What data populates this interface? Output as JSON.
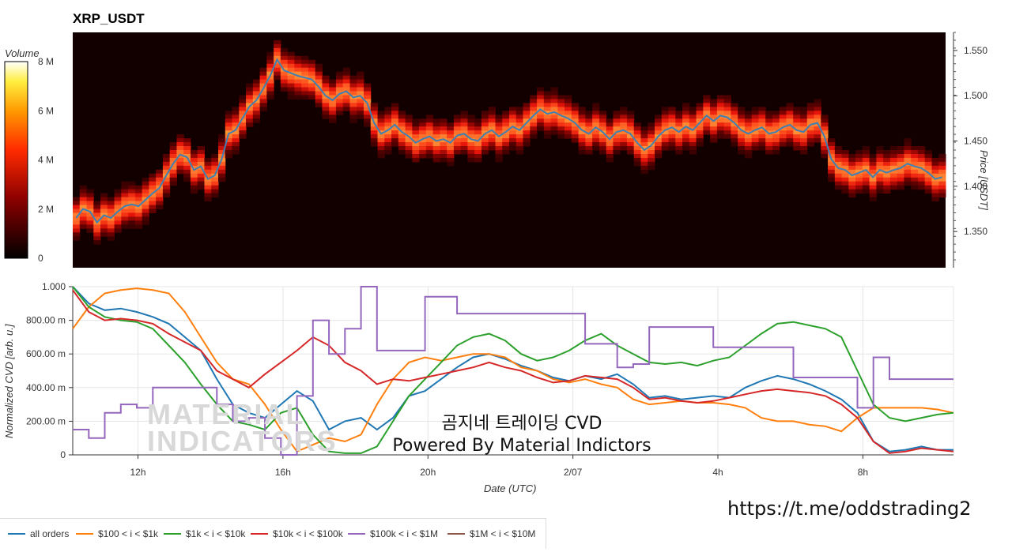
{
  "chart_data": [
    {
      "type": "heatmap",
      "title": "XRP_USDT",
      "xlabel": "",
      "ylabel": "Price [USDT]",
      "ylim": [
        1.31,
        1.57
      ],
      "yticks": [
        "1.350",
        "1.400",
        "1.450",
        "1.500",
        "1.550"
      ],
      "colorbar": {
        "label": "Volume",
        "ticks": [
          "0",
          "2 M",
          "4 M",
          "6 M",
          "8 M"
        ],
        "range": [
          0,
          8000000
        ]
      },
      "price_series": {
        "name": "",
        "color": "#3f7fb2",
        "values": [
          1.365,
          1.375,
          1.372,
          1.36,
          1.368,
          1.365,
          1.372,
          1.378,
          1.38,
          1.378,
          1.385,
          1.392,
          1.398,
          1.412,
          1.425,
          1.435,
          1.432,
          1.418,
          1.422,
          1.408,
          1.412,
          1.43,
          1.458,
          1.462,
          1.475,
          1.488,
          1.495,
          1.508,
          1.522,
          1.54,
          1.528,
          1.525,
          1.522,
          1.52,
          1.518,
          1.51,
          1.5,
          1.495,
          1.502,
          1.505,
          1.498,
          1.5,
          1.492,
          1.47,
          1.458,
          1.462,
          1.468,
          1.46,
          1.455,
          1.448,
          1.452,
          1.455,
          1.45,
          1.452,
          1.448,
          1.456,
          1.458,
          1.452,
          1.45,
          1.458,
          1.462,
          1.455,
          1.46,
          1.466,
          1.462,
          1.47,
          1.478,
          1.485,
          1.48,
          1.482,
          1.478,
          1.475,
          1.47,
          1.462,
          1.458,
          1.465,
          1.46,
          1.452,
          1.46,
          1.462,
          1.458,
          1.448,
          1.44,
          1.445,
          1.455,
          1.462,
          1.465,
          1.46,
          1.466,
          1.462,
          1.47,
          1.478,
          1.472,
          1.478,
          1.476,
          1.47,
          1.462,
          1.458,
          1.462,
          1.465,
          1.458,
          1.46,
          1.465,
          1.468,
          1.462,
          1.46,
          1.468,
          1.47,
          1.455,
          1.43,
          1.42,
          1.418,
          1.412,
          1.415,
          1.418,
          1.41,
          1.418,
          1.415,
          1.418,
          1.42,
          1.425,
          1.422,
          1.42,
          1.415,
          1.408,
          1.41
        ]
      }
    },
    {
      "type": "line",
      "title": "",
      "xlabel": "Date (UTC)",
      "ylabel": "Normalized CVD [arb. u.]",
      "ylim": [
        0,
        1
      ],
      "yticks": [
        "0",
        "200.00 m",
        "400.00 m",
        "600.00 m",
        "800.00 m",
        "1.000"
      ],
      "xticks": [
        "12h",
        "16h",
        "20h",
        "2/07",
        "4h",
        "8h"
      ],
      "xtick_hours": [
        12,
        16,
        20,
        24,
        28,
        32
      ],
      "x_start_hour": 10.2,
      "x_end_hour": 34.5,
      "series": [
        {
          "name": "all orders",
          "color": "#1f77b4",
          "values": [
            1.0,
            0.9,
            0.86,
            0.87,
            0.85,
            0.82,
            0.78,
            0.7,
            0.62,
            0.45,
            0.3,
            0.25,
            0.22,
            0.3,
            0.38,
            0.32,
            0.15,
            0.2,
            0.22,
            0.15,
            0.22,
            0.35,
            0.38,
            0.45,
            0.52,
            0.58,
            0.6,
            0.57,
            0.53,
            0.5,
            0.46,
            0.44,
            0.47,
            0.45,
            0.48,
            0.42,
            0.34,
            0.35,
            0.33,
            0.34,
            0.35,
            0.34,
            0.4,
            0.44,
            0.47,
            0.45,
            0.42,
            0.38,
            0.33,
            0.25,
            0.08,
            0.02,
            0.03,
            0.05,
            0.03,
            0.03
          ]
        },
        {
          "name": "$100 < i < $1k",
          "color": "#ff7f0e",
          "values": [
            0.75,
            0.88,
            0.96,
            0.98,
            0.99,
            0.98,
            0.96,
            0.85,
            0.7,
            0.55,
            0.45,
            0.42,
            0.3,
            0.15,
            0.02,
            0.06,
            0.1,
            0.08,
            0.12,
            0.3,
            0.45,
            0.55,
            0.58,
            0.56,
            0.58,
            0.6,
            0.6,
            0.58,
            0.52,
            0.5,
            0.45,
            0.43,
            0.45,
            0.42,
            0.4,
            0.33,
            0.3,
            0.31,
            0.32,
            0.31,
            0.31,
            0.3,
            0.28,
            0.22,
            0.2,
            0.2,
            0.18,
            0.17,
            0.14,
            0.22,
            0.28,
            0.28,
            0.28,
            0.28,
            0.27,
            0.25
          ]
        },
        {
          "name": "$1k < i < $10k",
          "color": "#2ca02c",
          "values": [
            1.0,
            0.88,
            0.82,
            0.8,
            0.79,
            0.75,
            0.65,
            0.55,
            0.42,
            0.3,
            0.2,
            0.18,
            0.15,
            0.25,
            0.28,
            0.12,
            0.02,
            0.01,
            0.01,
            0.05,
            0.2,
            0.35,
            0.45,
            0.55,
            0.65,
            0.7,
            0.72,
            0.68,
            0.6,
            0.56,
            0.58,
            0.62,
            0.68,
            0.72,
            0.65,
            0.6,
            0.55,
            0.54,
            0.55,
            0.53,
            0.56,
            0.58,
            0.65,
            0.72,
            0.78,
            0.79,
            0.77,
            0.75,
            0.7,
            0.5,
            0.3,
            0.22,
            0.2,
            0.22,
            0.24,
            0.25
          ]
        },
        {
          "name": "$10k < i < $100k",
          "color": "#d62728",
          "values": [
            0.98,
            0.85,
            0.8,
            0.81,
            0.8,
            0.78,
            0.72,
            0.67,
            0.62,
            0.5,
            0.45,
            0.4,
            0.48,
            0.55,
            0.62,
            0.7,
            0.65,
            0.55,
            0.5,
            0.42,
            0.45,
            0.44,
            0.46,
            0.48,
            0.5,
            0.52,
            0.55,
            0.52,
            0.5,
            0.46,
            0.43,
            0.44,
            0.47,
            0.46,
            0.45,
            0.4,
            0.33,
            0.34,
            0.32,
            0.31,
            0.32,
            0.34,
            0.36,
            0.38,
            0.39,
            0.38,
            0.37,
            0.35,
            0.3,
            0.22,
            0.08,
            0.01,
            0.02,
            0.04,
            0.03,
            0.02
          ]
        },
        {
          "name": "$100k < i < $1M",
          "color": "#9467bd",
          "values": [
            0.15,
            0.1,
            0.25,
            0.3,
            0.28,
            0.4,
            0.4,
            0.4,
            0.4,
            0.3,
            0.2,
            0.22,
            0.1,
            0.0,
            0.35,
            0.8,
            0.6,
            0.75,
            1.0,
            0.62,
            0.62,
            0.62,
            0.94,
            0.94,
            0.84,
            0.84,
            0.84,
            0.84,
            0.84,
            0.84,
            0.84,
            0.84,
            0.66,
            0.66,
            0.52,
            0.54,
            0.76,
            0.76,
            0.76,
            0.76,
            0.64,
            0.64,
            0.64,
            0.64,
            0.64,
            0.46,
            0.46,
            0.46,
            0.46,
            0.28,
            0.58,
            0.45,
            0.45,
            0.45,
            0.45,
            0.45
          ]
        },
        {
          "name": "$1M < i < $10M",
          "color": "#8c564b",
          "values": []
        }
      ]
    }
  ],
  "watermark": {
    "line1": "곰지네 트레이딩 CVD",
    "line2": "Powered By Material Indictors"
  },
  "faint_logo": {
    "line1": "MATERIAL",
    "line2": "INDICATORS"
  },
  "url": "https://t.me/oddstrading2"
}
